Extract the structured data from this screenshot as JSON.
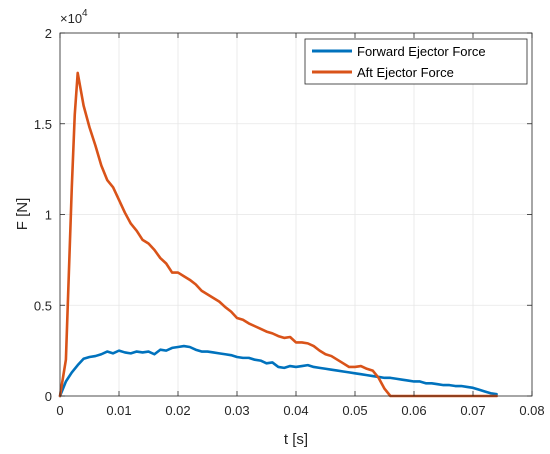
{
  "chart_data": {
    "type": "line",
    "xlabel": "t [s]",
    "ylabel": "F [N]",
    "y_exponent_base": "×10",
    "y_exponent_power": "4",
    "xlim": [
      0,
      0.08
    ],
    "ylim": [
      0,
      20000
    ],
    "x_ticks": [
      0,
      0.01,
      0.02,
      0.03,
      0.04,
      0.05,
      0.06,
      0.07,
      0.08
    ],
    "x_tick_labels": [
      "0",
      "0.01",
      "0.02",
      "0.03",
      "0.04",
      "0.05",
      "0.06",
      "0.07",
      "0.08"
    ],
    "y_ticks": [
      0,
      5000,
      10000,
      15000,
      20000
    ],
    "y_tick_labels": [
      "0",
      "0.5",
      "1",
      "1.5",
      "2"
    ],
    "grid": true,
    "legend_position": "top-right",
    "series": [
      {
        "name": "Forward Ejector Force",
        "color": "#0072BD",
        "x": [
          0,
          0.001,
          0.002,
          0.003,
          0.004,
          0.005,
          0.006,
          0.007,
          0.008,
          0.009,
          0.01,
          0.011,
          0.012,
          0.013,
          0.014,
          0.015,
          0.016,
          0.017,
          0.018,
          0.019,
          0.02,
          0.021,
          0.022,
          0.023,
          0.024,
          0.025,
          0.026,
          0.027,
          0.028,
          0.029,
          0.03,
          0.031,
          0.032,
          0.033,
          0.034,
          0.035,
          0.036,
          0.037,
          0.038,
          0.039,
          0.04,
          0.041,
          0.042,
          0.043,
          0.044,
          0.045,
          0.046,
          0.047,
          0.048,
          0.049,
          0.05,
          0.051,
          0.052,
          0.053,
          0.054,
          0.055,
          0.056,
          0.057,
          0.058,
          0.059,
          0.06,
          0.061,
          0.062,
          0.063,
          0.064,
          0.065,
          0.066,
          0.067,
          0.068,
          0.069,
          0.07,
          0.071,
          0.072,
          0.073,
          0.074
        ],
        "y": [
          0,
          800,
          1300,
          1700,
          2050,
          2150,
          2200,
          2300,
          2450,
          2350,
          2500,
          2400,
          2350,
          2450,
          2400,
          2450,
          2300,
          2550,
          2500,
          2650,
          2700,
          2750,
          2700,
          2550,
          2450,
          2450,
          2400,
          2350,
          2300,
          2250,
          2150,
          2100,
          2100,
          2000,
          1950,
          1800,
          1850,
          1600,
          1550,
          1650,
          1600,
          1650,
          1700,
          1600,
          1550,
          1500,
          1450,
          1400,
          1350,
          1300,
          1250,
          1200,
          1150,
          1100,
          1050,
          1000,
          1000,
          950,
          900,
          850,
          800,
          800,
          700,
          700,
          650,
          600,
          600,
          550,
          550,
          500,
          450,
          350,
          250,
          150,
          100
        ]
      },
      {
        "name": "Aft Ejector Force",
        "color": "#D95319",
        "x": [
          0,
          0.001,
          0.002,
          0.0025,
          0.003,
          0.004,
          0.005,
          0.006,
          0.007,
          0.008,
          0.009,
          0.01,
          0.011,
          0.012,
          0.013,
          0.014,
          0.015,
          0.016,
          0.017,
          0.018,
          0.019,
          0.02,
          0.021,
          0.022,
          0.023,
          0.024,
          0.025,
          0.026,
          0.027,
          0.028,
          0.029,
          0.03,
          0.031,
          0.032,
          0.033,
          0.034,
          0.035,
          0.036,
          0.037,
          0.038,
          0.039,
          0.04,
          0.041,
          0.042,
          0.043,
          0.044,
          0.045,
          0.046,
          0.047,
          0.048,
          0.049,
          0.05,
          0.051,
          0.052,
          0.053,
          0.054,
          0.055,
          0.056,
          0.057,
          0.058,
          0.059,
          0.06,
          0.065,
          0.07,
          0.074
        ],
        "y": [
          0,
          2000,
          11500,
          15500,
          17800,
          16000,
          14800,
          13800,
          12700,
          11900,
          11500,
          10800,
          10100,
          9500,
          9100,
          8600,
          8400,
          8050,
          7600,
          7300,
          6800,
          6800,
          6600,
          6400,
          6150,
          5800,
          5600,
          5400,
          5200,
          4900,
          4650,
          4300,
          4200,
          4000,
          3850,
          3700,
          3550,
          3450,
          3300,
          3200,
          3250,
          2950,
          2950,
          2900,
          2750,
          2500,
          2300,
          2200,
          2000,
          1800,
          1600,
          1600,
          1650,
          1500,
          1400,
          1000,
          400,
          0,
          0,
          0,
          0,
          0,
          0,
          0,
          0
        ]
      }
    ]
  }
}
